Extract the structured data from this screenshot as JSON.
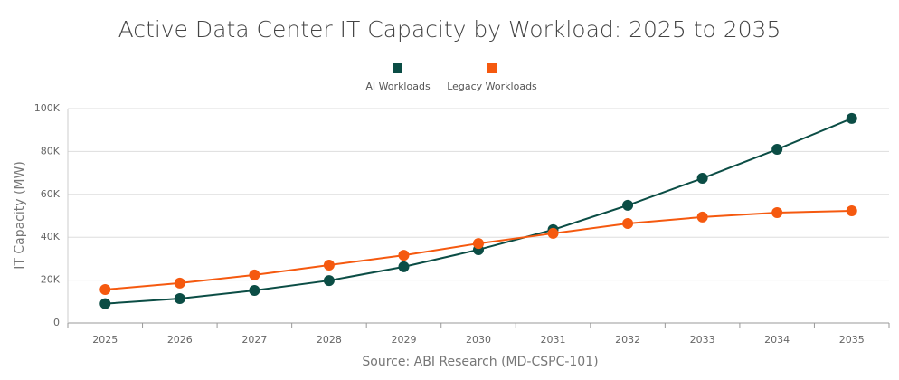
{
  "chart_data": {
    "type": "line",
    "title": "Active Data Center IT Capacity by Workload: 2025 to 2035",
    "x_label": "Source: ABI Research (MD-CSPC-101)",
    "y_label": "IT Capacity (MW)",
    "categories": [
      "2025",
      "2026",
      "2027",
      "2028",
      "2029",
      "2030",
      "2031",
      "2032",
      "2033",
      "2034",
      "2035"
    ],
    "series": [
      {
        "name": "AI Workloads",
        "color": "#0b4d45",
        "values": [
          9000,
          11400,
          15200,
          19800,
          26200,
          34200,
          43500,
          54900,
          67500,
          81000,
          95400
        ]
      },
      {
        "name": "Legacy Workloads",
        "color": "#f5590f",
        "values": [
          15600,
          18600,
          22400,
          27000,
          31600,
          37100,
          41800,
          46400,
          49400,
          51500,
          52300
        ]
      }
    ],
    "ylim": [
      0,
      100000
    ],
    "yticks": [
      0,
      {
        "value": 20000,
        "label": "20K"
      },
      {
        "value": 40000,
        "label": "40K"
      },
      {
        "value": 60000,
        "label": "60K"
      },
      {
        "value": 80000,
        "label": "80K"
      },
      {
        "value": 100000,
        "label": "100K"
      }
    ],
    "grid": true,
    "legend": "top"
  }
}
